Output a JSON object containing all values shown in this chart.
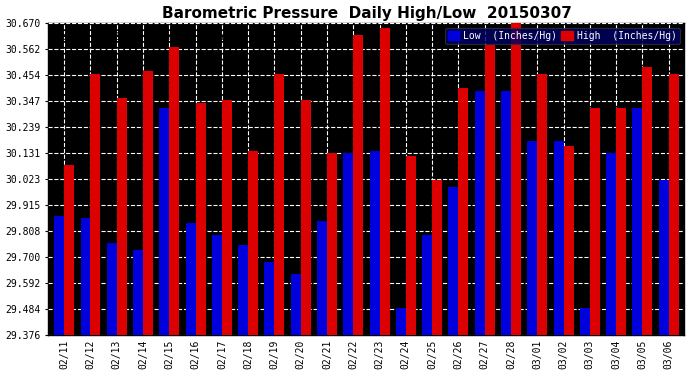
{
  "title": "Barometric Pressure  Daily High/Low  20150307",
  "legend_low": "Low  (Inches/Hg)",
  "legend_high": "High  (Inches/Hg)",
  "low_color": "#0000dd",
  "high_color": "#dd0000",
  "background_color": "#ffffff",
  "plot_bg_color": "#000000",
  "grid_color": "#ffffff",
  "ylim": [
    29.376,
    30.67
  ],
  "yticks": [
    29.376,
    29.484,
    29.592,
    29.7,
    29.808,
    29.915,
    30.023,
    30.131,
    30.239,
    30.347,
    30.454,
    30.562,
    30.67
  ],
  "dates": [
    "02/11",
    "02/12",
    "02/13",
    "02/14",
    "02/15",
    "02/16",
    "02/17",
    "02/18",
    "02/19",
    "02/20",
    "02/21",
    "02/22",
    "02/23",
    "02/24",
    "02/25",
    "02/26",
    "02/27",
    "02/28",
    "03/01",
    "03/02",
    "03/03",
    "03/04",
    "03/05",
    "03/06"
  ],
  "low_values": [
    29.87,
    29.86,
    29.76,
    29.73,
    30.32,
    29.84,
    29.79,
    29.75,
    29.68,
    29.63,
    29.85,
    30.13,
    30.14,
    29.49,
    29.79,
    29.99,
    30.39,
    30.39,
    30.18,
    30.18,
    29.49,
    30.13,
    30.32,
    30.02
  ],
  "high_values": [
    30.08,
    30.46,
    30.36,
    30.47,
    30.57,
    30.34,
    30.35,
    30.14,
    30.46,
    30.35,
    30.13,
    30.62,
    30.65,
    30.12,
    30.02,
    30.4,
    30.58,
    30.67,
    30.46,
    30.16,
    30.32,
    30.32,
    30.49,
    30.46
  ],
  "bar_width": 0.38,
  "title_fontsize": 11,
  "tick_fontsize": 7,
  "copyright_fontsize": 7
}
